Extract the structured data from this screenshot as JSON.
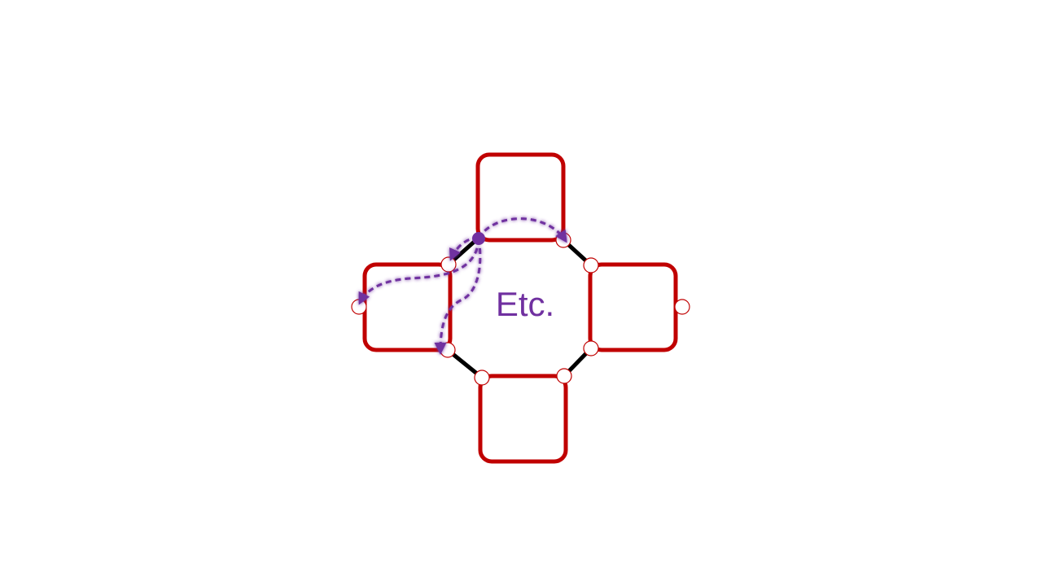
{
  "diagram": {
    "center_label": "Etc.",
    "colors": {
      "box_stroke": "#c00000",
      "connector": "#000000",
      "port_stroke": "#c00000",
      "path": "#7030a0",
      "label": "#7030a0"
    }
  }
}
